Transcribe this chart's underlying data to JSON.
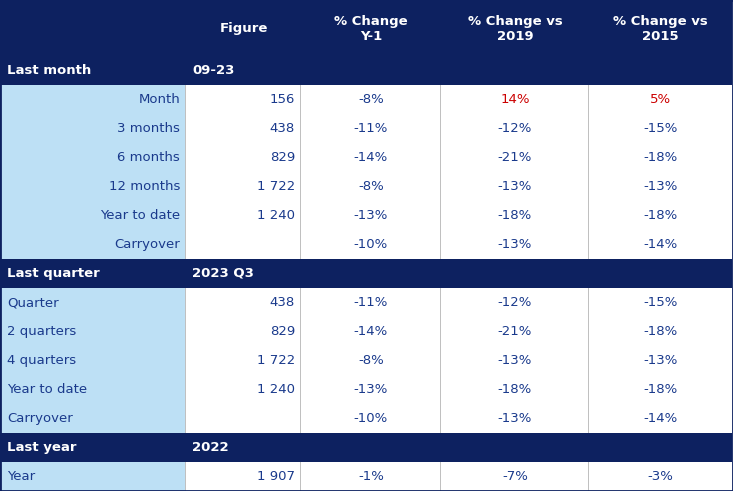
{
  "header_bg": "#0d2160",
  "header_text": "#ffffff",
  "section_bg": "#0d2160",
  "row_bg_light": "#bde0f5",
  "row_bg_white": "#ffffff",
  "data_text_dark": "#1a3a8c",
  "data_text_light": "#1a3a8c",
  "red_text": "#cc0000",
  "col_headers": [
    "Figure",
    "% Change\nY-1",
    "% Change vs\n2019",
    "% Change vs\n2015"
  ],
  "sections": [
    {
      "label": "Last month",
      "value": "09-23",
      "label_align": "right",
      "rows": [
        {
          "label": "Month",
          "figure": "156",
          "y1": "-8%",
          "vs2019": "14%",
          "vs2015": "5%",
          "red_cols": [
            2,
            3
          ]
        },
        {
          "label": "3 months",
          "figure": "438",
          "y1": "-11%",
          "vs2019": "-12%",
          "vs2015": "-15%",
          "red_cols": []
        },
        {
          "label": "6 months",
          "figure": "829",
          "y1": "-14%",
          "vs2019": "-21%",
          "vs2015": "-18%",
          "red_cols": []
        },
        {
          "label": "12 months",
          "figure": "1 722",
          "y1": "-8%",
          "vs2019": "-13%",
          "vs2015": "-13%",
          "red_cols": []
        },
        {
          "label": "Year to date",
          "figure": "1 240",
          "y1": "-13%",
          "vs2019": "-18%",
          "vs2015": "-18%",
          "red_cols": []
        },
        {
          "label": "Carryover",
          "figure": "",
          "y1": "-10%",
          "vs2019": "-13%",
          "vs2015": "-14%",
          "red_cols": []
        }
      ]
    },
    {
      "label": "Last quarter",
      "value": "2023 Q3",
      "label_align": "left",
      "rows": [
        {
          "label": "Quarter",
          "figure": "438",
          "y1": "-11%",
          "vs2019": "-12%",
          "vs2015": "-15%",
          "red_cols": []
        },
        {
          "label": "2 quarters",
          "figure": "829",
          "y1": "-14%",
          "vs2019": "-21%",
          "vs2015": "-18%",
          "red_cols": []
        },
        {
          "label": "4 quarters",
          "figure": "1 722",
          "y1": "-8%",
          "vs2019": "-13%",
          "vs2015": "-13%",
          "red_cols": []
        },
        {
          "label": "Year to date",
          "figure": "1 240",
          "y1": "-13%",
          "vs2019": "-18%",
          "vs2015": "-18%",
          "red_cols": []
        },
        {
          "label": "Carryover",
          "figure": "",
          "y1": "-10%",
          "vs2019": "-13%",
          "vs2015": "-14%",
          "red_cols": []
        }
      ]
    },
    {
      "label": "Last year",
      "value": "2022",
      "label_align": "left",
      "rows": [
        {
          "label": "Year",
          "figure": "1 907",
          "y1": "-1%",
          "vs2019": "-7%",
          "vs2015": "-3%",
          "red_cols": []
        }
      ]
    }
  ]
}
